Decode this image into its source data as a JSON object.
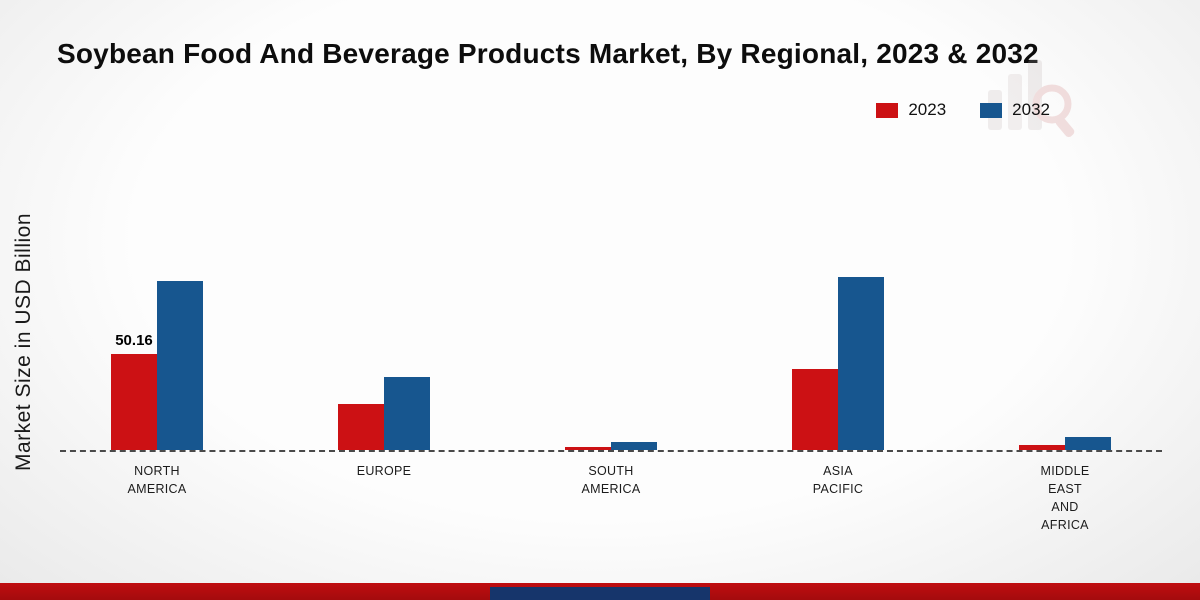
{
  "chart_data": {
    "type": "bar",
    "title": "Soybean Food And Beverage Products Market, By Regional, 2023 & 2032",
    "ylabel": "Market Size in USD Billion",
    "categories": [
      "NORTH\nAMERICA",
      "EUROPE",
      "SOUTH\nAMERICA",
      "ASIA\nPACIFIC",
      "MIDDLE\nEAST\nAND\nAFRICA"
    ],
    "series": [
      {
        "name": "2023",
        "color": "#cc1114",
        "values": [
          50.16,
          24,
          1.5,
          42,
          2.5
        ]
      },
      {
        "name": "2032",
        "color": "#17568f",
        "values": [
          88,
          38,
          4,
          90,
          7
        ]
      }
    ],
    "data_labels": [
      {
        "series_index": 0,
        "category_index": 0,
        "text": "50.16"
      }
    ],
    "ylim": [
      0,
      95
    ],
    "baseline": "dashed",
    "legend_position": "top-right",
    "grid": false
  },
  "colors": {
    "footer_red": "#c00d10",
    "footer_blue": "#16356b",
    "background_top": "#fdfdfd",
    "background_edge": "#e9e9e9"
  }
}
